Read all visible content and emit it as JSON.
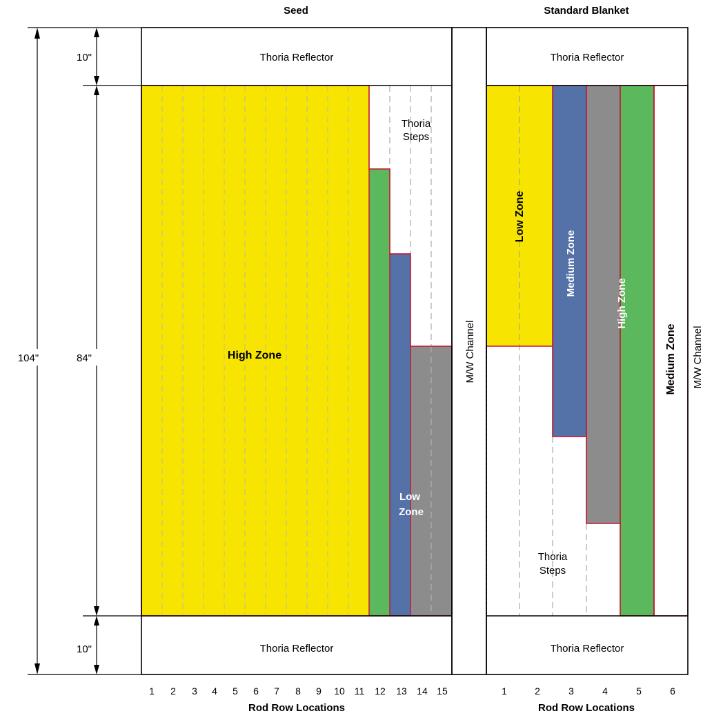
{
  "headers": {
    "seed": "Seed",
    "blanket": "Standard Blanket"
  },
  "dimensions": {
    "total": "104\"",
    "core": "84\"",
    "top_reflector": "10\"",
    "bottom_reflector": "10\""
  },
  "reflector_label": "Thoria Reflector",
  "channel_label": "M/W Channel",
  "seed": {
    "high_zone": "High Zone",
    "low_zone": [
      "Low",
      "Zone"
    ],
    "thoria_steps": [
      "Thoria",
      "Steps"
    ],
    "rod_numbers": [
      "1",
      "2",
      "3",
      "4",
      "5",
      "6",
      "7",
      "8",
      "9",
      "10",
      "11",
      "12",
      "13",
      "14",
      "15"
    ]
  },
  "blanket": {
    "low_zone": "Low Zone",
    "medium_zone": "Medium Zone",
    "high_zone": "High Zone",
    "medium_zone_outer": "Medium Zone",
    "thoria_steps": [
      "Thoria",
      "Steps"
    ],
    "rod_numbers": [
      "1",
      "2",
      "3",
      "4",
      "5",
      "6"
    ]
  },
  "axis_label": "Rod Row Locations",
  "colors": {
    "yellow": "#f7e400",
    "green": "#5cb85c",
    "blue": "#5471a8",
    "gray": "#8c8c8c",
    "zone_border": "#c8102e",
    "outline": "#000000",
    "dashed": "#9a9a9a"
  }
}
